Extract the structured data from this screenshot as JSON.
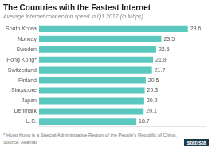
{
  "chart_data": {
    "type": "bar",
    "orientation": "horizontal",
    "title": "The Countries with the Fastest Internet",
    "subtitle": "Average Internet connection speed in Q1 2017 (in Mbps)",
    "categories": [
      "South Korea",
      "Norway",
      "Sweden",
      "Hong Kong*",
      "Switzerland",
      "Finland",
      "Singapore",
      "Japan",
      "Denmark",
      "U.S."
    ],
    "values": [
      28.6,
      23.5,
      22.5,
      21.9,
      21.7,
      20.5,
      20.3,
      20.2,
      20.1,
      18.7
    ],
    "color": "#5bc8c0",
    "xlim": [
      0,
      32
    ],
    "grid": false,
    "tick_labels": "y",
    "data_labels": true,
    "annotations": [
      "* Hong Kong is a Special Administrative Region of the People's Republic of China.",
      "Source: Akamai",
      "statista"
    ]
  }
}
